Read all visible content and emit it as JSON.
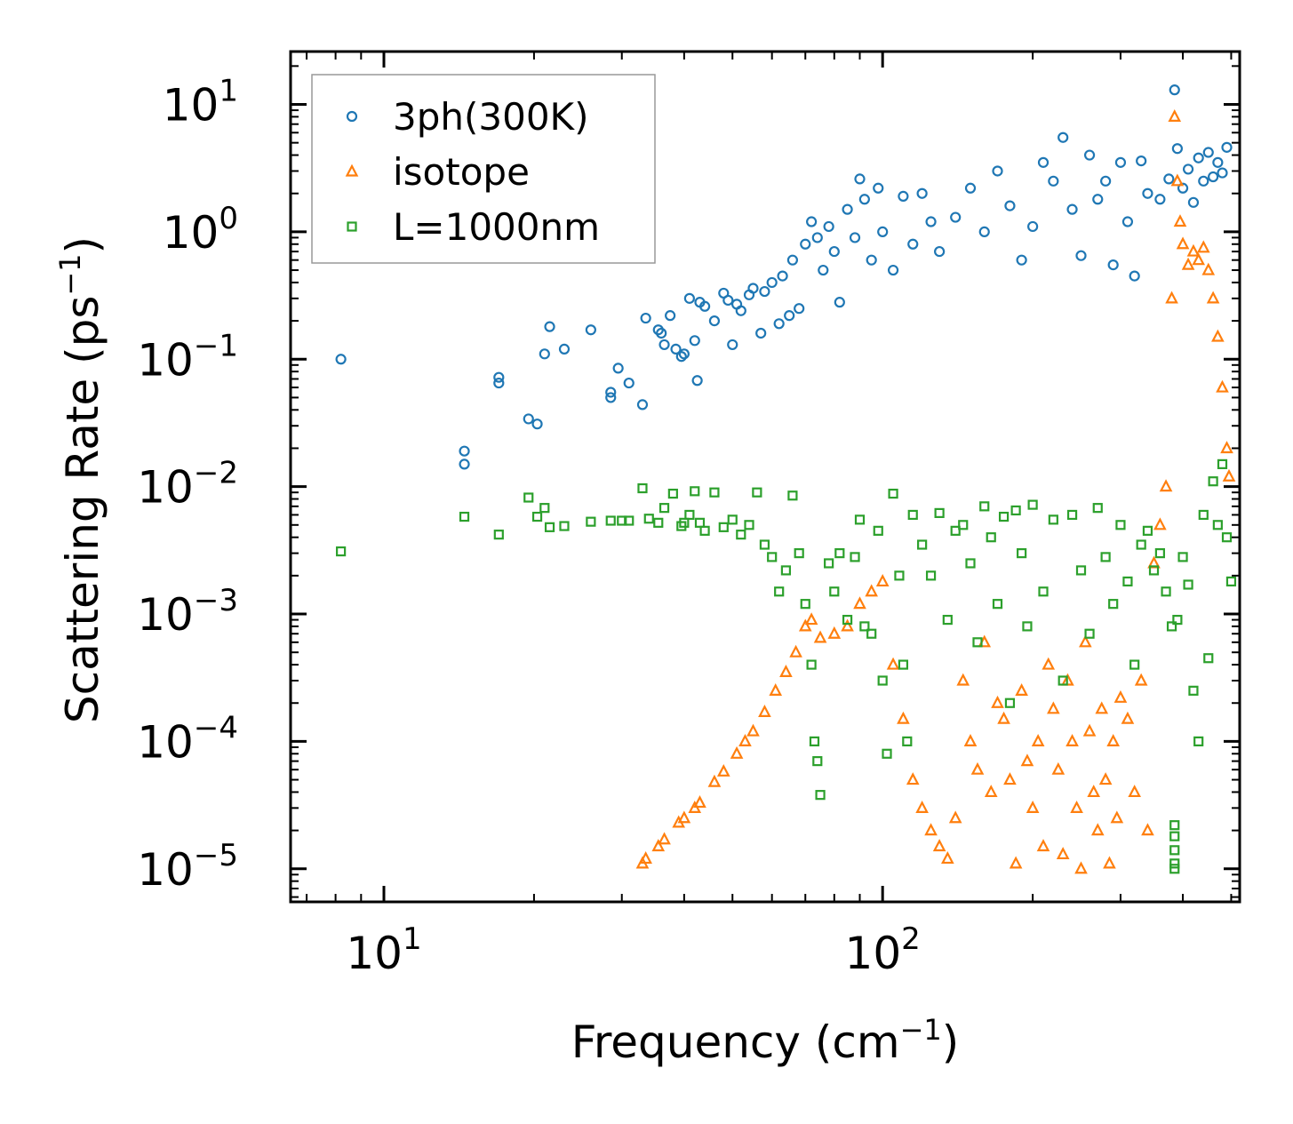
{
  "chart_data": {
    "type": "scatter",
    "xscale": "log",
    "yscale": "log",
    "xlim": [
      6.5,
      520
    ],
    "ylim": [
      5.5e-06,
      26
    ],
    "xlabel": {
      "base": "Frequency (cm",
      "sup": "−1",
      "end": ")"
    },
    "ylabel": {
      "base": "Scattering Rate (ps",
      "sup": "−1",
      "end": ")"
    },
    "xticks": [
      {
        "value": 10,
        "base": "10",
        "exp": "1"
      },
      {
        "value": 100,
        "base": "10",
        "exp": "2"
      }
    ],
    "yticks": [
      {
        "value": 10,
        "base": "10",
        "exp": "1"
      },
      {
        "value": 1,
        "base": "10",
        "exp": "0"
      },
      {
        "value": 0.1,
        "base": "10",
        "exp": "−1"
      },
      {
        "value": 0.01,
        "base": "10",
        "exp": "−2"
      },
      {
        "value": 0.001,
        "base": "10",
        "exp": "−3"
      },
      {
        "value": 0.0001,
        "base": "10",
        "exp": "−4"
      },
      {
        "value": 1e-05,
        "base": "10",
        "exp": "−5"
      }
    ],
    "legend_position": "top-left",
    "series": [
      {
        "name": "3ph(300K)",
        "marker": "circle",
        "color": "#1f77b4",
        "points": [
          [
            8.2,
            0.1
          ],
          [
            14.5,
            0.019
          ],
          [
            14.5,
            0.015
          ],
          [
            17,
            0.072
          ],
          [
            17,
            0.065
          ],
          [
            19.5,
            0.034
          ],
          [
            20.3,
            0.031
          ],
          [
            21,
            0.11
          ],
          [
            21.5,
            0.18
          ],
          [
            23,
            0.12
          ],
          [
            26,
            0.17
          ],
          [
            28.5,
            0.055
          ],
          [
            28.5,
            0.05
          ],
          [
            29.5,
            0.085
          ],
          [
            31,
            0.065
          ],
          [
            33,
            0.044
          ],
          [
            33.5,
            0.21
          ],
          [
            35.5,
            0.17
          ],
          [
            36,
            0.16
          ],
          [
            36.5,
            0.13
          ],
          [
            37.5,
            0.22
          ],
          [
            38.5,
            0.12
          ],
          [
            39.5,
            0.105
          ],
          [
            40,
            0.11
          ],
          [
            41,
            0.3
          ],
          [
            42,
            0.14
          ],
          [
            42.5,
            0.068
          ],
          [
            43,
            0.28
          ],
          [
            44,
            0.26
          ],
          [
            46,
            0.2
          ],
          [
            48,
            0.33
          ],
          [
            49,
            0.29
          ],
          [
            50,
            0.13
          ],
          [
            51,
            0.27
          ],
          [
            52,
            0.24
          ],
          [
            54,
            0.32
          ],
          [
            55,
            0.36
          ],
          [
            57,
            0.16
          ],
          [
            58,
            0.34
          ],
          [
            60,
            0.4
          ],
          [
            62,
            0.19
          ],
          [
            63,
            0.45
          ],
          [
            65,
            0.22
          ],
          [
            66,
            0.6
          ],
          [
            68,
            0.25
          ],
          [
            70,
            0.8
          ],
          [
            72,
            1.2
          ],
          [
            74,
            0.9
          ],
          [
            76,
            0.5
          ],
          [
            78,
            1.1
          ],
          [
            80,
            0.7
          ],
          [
            82,
            0.28
          ],
          [
            85,
            1.5
          ],
          [
            88,
            0.9
          ],
          [
            90,
            2.6
          ],
          [
            92,
            1.8
          ],
          [
            95,
            0.6
          ],
          [
            98,
            2.2
          ],
          [
            100,
            1.0
          ],
          [
            105,
            0.5
          ],
          [
            110,
            1.9
          ],
          [
            115,
            0.8
          ],
          [
            120,
            2.0
          ],
          [
            125,
            1.2
          ],
          [
            130,
            0.7
          ],
          [
            140,
            1.3
          ],
          [
            150,
            2.2
          ],
          [
            160,
            1.0
          ],
          [
            170,
            3.0
          ],
          [
            180,
            1.6
          ],
          [
            190,
            0.6
          ],
          [
            200,
            1.1
          ],
          [
            210,
            3.5
          ],
          [
            220,
            2.5
          ],
          [
            230,
            5.5
          ],
          [
            240,
            1.5
          ],
          [
            250,
            0.65
          ],
          [
            260,
            4.0
          ],
          [
            270,
            1.8
          ],
          [
            280,
            2.5
          ],
          [
            290,
            0.55
          ],
          [
            300,
            3.5
          ],
          [
            310,
            1.2
          ],
          [
            320,
            0.45
          ],
          [
            330,
            3.6
          ],
          [
            340,
            2.0
          ],
          [
            360,
            1.8
          ],
          [
            375,
            2.6
          ],
          [
            385,
            13
          ],
          [
            390,
            4.5
          ],
          [
            400,
            2.2
          ],
          [
            410,
            3.1
          ],
          [
            420,
            1.7
          ],
          [
            430,
            3.8
          ],
          [
            440,
            2.5
          ],
          [
            450,
            4.2
          ],
          [
            460,
            2.7
          ],
          [
            470,
            3.5
          ],
          [
            480,
            2.9
          ],
          [
            490,
            4.6
          ]
        ]
      },
      {
        "name": "isotope",
        "marker": "triangle",
        "color": "#ff7f0e",
        "points": [
          [
            33,
            1.1e-05
          ],
          [
            33.5,
            1.2e-05
          ],
          [
            35.5,
            1.5e-05
          ],
          [
            36.5,
            1.7e-05
          ],
          [
            39,
            2.3e-05
          ],
          [
            40,
            2.5e-05
          ],
          [
            42,
            3e-05
          ],
          [
            43,
            3.3e-05
          ],
          [
            46,
            4.8e-05
          ],
          [
            48,
            5.8e-05
          ],
          [
            51,
            8e-05
          ],
          [
            53,
            0.0001
          ],
          [
            55,
            0.00012
          ],
          [
            58,
            0.00017
          ],
          [
            61,
            0.00025
          ],
          [
            64,
            0.00035
          ],
          [
            67,
            0.0005
          ],
          [
            70,
            0.0008
          ],
          [
            72,
            0.0009
          ],
          [
            75,
            0.00065
          ],
          [
            80,
            0.0007
          ],
          [
            85,
            0.0008
          ],
          [
            90,
            0.0012
          ],
          [
            95,
            0.0015
          ],
          [
            100,
            0.0018
          ],
          [
            105,
            0.0004
          ],
          [
            110,
            0.00015
          ],
          [
            115,
            5e-05
          ],
          [
            120,
            3e-05
          ],
          [
            125,
            2e-05
          ],
          [
            130,
            1.5e-05
          ],
          [
            135,
            1.2e-05
          ],
          [
            140,
            2.5e-05
          ],
          [
            145,
            0.0003
          ],
          [
            150,
            0.0001
          ],
          [
            155,
            6e-05
          ],
          [
            160,
            0.0006
          ],
          [
            165,
            4e-05
          ],
          [
            170,
            0.0002
          ],
          [
            175,
            0.00015
          ],
          [
            180,
            5e-05
          ],
          [
            185,
            1.1e-05
          ],
          [
            190,
            0.00025
          ],
          [
            195,
            7e-05
          ],
          [
            200,
            3e-05
          ],
          [
            205,
            0.0001
          ],
          [
            210,
            1.5e-05
          ],
          [
            215,
            0.0004
          ],
          [
            220,
            0.00018
          ],
          [
            225,
            6e-05
          ],
          [
            230,
            1.3e-05
          ],
          [
            235,
            0.0003
          ],
          [
            240,
            0.0001
          ],
          [
            245,
            3e-05
          ],
          [
            250,
            1e-05
          ],
          [
            255,
            0.0006
          ],
          [
            260,
            0.00012
          ],
          [
            265,
            4e-05
          ],
          [
            270,
            2e-05
          ],
          [
            275,
            0.00018
          ],
          [
            280,
            5e-05
          ],
          [
            285,
            1.1e-05
          ],
          [
            290,
            0.0001
          ],
          [
            295,
            2.5e-05
          ],
          [
            300,
            0.00022
          ],
          [
            310,
            0.00015
          ],
          [
            320,
            4e-05
          ],
          [
            330,
            0.0003
          ],
          [
            340,
            2e-05
          ],
          [
            350,
            0.0025
          ],
          [
            360,
            0.005
          ],
          [
            370,
            0.01
          ],
          [
            380,
            0.3
          ],
          [
            385,
            8
          ],
          [
            390,
            2.5
          ],
          [
            395,
            1.2
          ],
          [
            400,
            0.8
          ],
          [
            410,
            0.55
          ],
          [
            420,
            0.7
          ],
          [
            430,
            0.6
          ],
          [
            440,
            0.75
          ],
          [
            450,
            0.5
          ],
          [
            460,
            0.3
          ],
          [
            470,
            0.15
          ],
          [
            480,
            0.06
          ],
          [
            490,
            0.02
          ],
          [
            495,
            0.012
          ]
        ]
      },
      {
        "name": "L=1000nm",
        "marker": "square",
        "color": "#2ca02c",
        "points": [
          [
            8.2,
            0.0031
          ],
          [
            14.5,
            0.0058
          ],
          [
            17,
            0.0042
          ],
          [
            19.5,
            0.0082
          ],
          [
            20.3,
            0.0058
          ],
          [
            21,
            0.0068
          ],
          [
            21.5,
            0.0048
          ],
          [
            23,
            0.0049
          ],
          [
            26,
            0.0053
          ],
          [
            28.5,
            0.0054
          ],
          [
            30,
            0.0054
          ],
          [
            31,
            0.0054
          ],
          [
            33,
            0.0097
          ],
          [
            34,
            0.0056
          ],
          [
            35.5,
            0.0052
          ],
          [
            36.5,
            0.0068
          ],
          [
            38,
            0.0088
          ],
          [
            39.5,
            0.0049
          ],
          [
            40,
            0.0052
          ],
          [
            41,
            0.006
          ],
          [
            42,
            0.0092
          ],
          [
            43,
            0.0052
          ],
          [
            44,
            0.0045
          ],
          [
            46,
            0.009
          ],
          [
            48,
            0.0048
          ],
          [
            50,
            0.0055
          ],
          [
            52,
            0.0042
          ],
          [
            54,
            0.005
          ],
          [
            56,
            0.009
          ],
          [
            58,
            0.0035
          ],
          [
            60,
            0.0028
          ],
          [
            62,
            0.0015
          ],
          [
            64,
            0.0022
          ],
          [
            66,
            0.0085
          ],
          [
            68,
            0.003
          ],
          [
            70,
            0.0012
          ],
          [
            72,
            0.0004
          ],
          [
            73,
            0.0001
          ],
          [
            74,
            7e-05
          ],
          [
            75,
            3.8e-05
          ],
          [
            78,
            0.0025
          ],
          [
            80,
            0.0015
          ],
          [
            82,
            0.003
          ],
          [
            85,
            0.0009
          ],
          [
            88,
            0.0028
          ],
          [
            90,
            0.0055
          ],
          [
            92,
            0.0008
          ],
          [
            95,
            0.0007
          ],
          [
            98,
            0.0045
          ],
          [
            100,
            0.0003
          ],
          [
            102,
            8e-05
          ],
          [
            105,
            0.0088
          ],
          [
            108,
            0.002
          ],
          [
            110,
            0.0004
          ],
          [
            112,
            0.0001
          ],
          [
            115,
            0.006
          ],
          [
            120,
            0.0035
          ],
          [
            125,
            0.002
          ],
          [
            130,
            0.0062
          ],
          [
            135,
            0.0009
          ],
          [
            140,
            0.0045
          ],
          [
            145,
            0.005
          ],
          [
            150,
            0.0025
          ],
          [
            155,
            0.0006
          ],
          [
            160,
            0.007
          ],
          [
            165,
            0.004
          ],
          [
            170,
            0.0012
          ],
          [
            175,
            0.0058
          ],
          [
            180,
            0.0002
          ],
          [
            185,
            0.0065
          ],
          [
            190,
            0.003
          ],
          [
            195,
            0.0008
          ],
          [
            200,
            0.0072
          ],
          [
            210,
            0.0015
          ],
          [
            220,
            0.0055
          ],
          [
            230,
            0.0003
          ],
          [
            240,
            0.006
          ],
          [
            250,
            0.0022
          ],
          [
            260,
            0.0007
          ],
          [
            270,
            0.0068
          ],
          [
            280,
            0.0028
          ],
          [
            290,
            0.0012
          ],
          [
            300,
            0.005
          ],
          [
            310,
            0.0018
          ],
          [
            320,
            0.0004
          ],
          [
            330,
            0.0035
          ],
          [
            340,
            0.0045
          ],
          [
            350,
            0.0022
          ],
          [
            360,
            0.003
          ],
          [
            370,
            0.0015
          ],
          [
            380,
            0.0008
          ],
          [
            385,
            2.2e-05
          ],
          [
            385,
            1.8e-05
          ],
          [
            385,
            1.4e-05
          ],
          [
            385,
            1.1e-05
          ],
          [
            385,
            1e-05
          ],
          [
            390,
            0.0009
          ],
          [
            400,
            0.0028
          ],
          [
            410,
            0.0017
          ],
          [
            420,
            0.00025
          ],
          [
            430,
            0.0001
          ],
          [
            440,
            0.006
          ],
          [
            450,
            0.00045
          ],
          [
            460,
            0.011
          ],
          [
            470,
            0.005
          ],
          [
            480,
            0.015
          ],
          [
            490,
            0.004
          ],
          [
            500,
            0.0018
          ]
        ]
      }
    ]
  }
}
